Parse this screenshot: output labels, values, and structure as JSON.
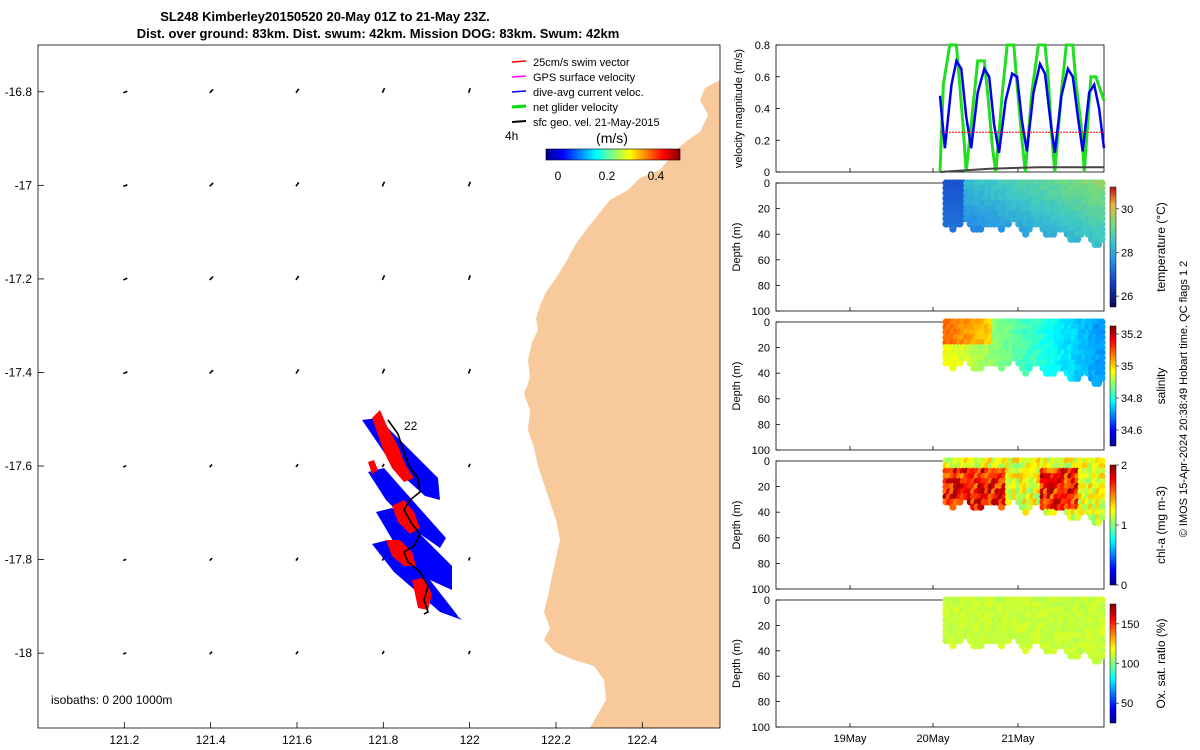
{
  "title": {
    "line1": "SL248 Kimberley20150520 20-May 01Z to 21-May 23Z.",
    "line2": "Dist. over ground: 83km. Dist. swum: 42km. Mission DOG: 83km. Swum: 42km"
  },
  "credit": "© IMOS 15-Apr-2024 20:38:49 Hobart time. QC flags 1  2",
  "map": {
    "xlim": [
      121.0,
      122.58
    ],
    "ylim": [
      -18.16,
      -16.7
    ],
    "xticks": [
      {
        "v": 121.2,
        "label": "121.2"
      },
      {
        "v": 121.4,
        "label": "121.4"
      },
      {
        "v": 121.6,
        "label": "121.6"
      },
      {
        "v": 121.8,
        "label": "121.8"
      },
      {
        "v": 122.0,
        "label": "122"
      },
      {
        "v": 122.2,
        "label": "122.2"
      },
      {
        "v": 122.4,
        "label": "122.4"
      }
    ],
    "yticks": [
      {
        "v": -16.8,
        "label": "-16.8"
      },
      {
        "v": -17.0,
        "label": "-17"
      },
      {
        "v": -17.2,
        "label": "-17.2"
      },
      {
        "v": -17.4,
        "label": "-17.4"
      },
      {
        "v": -17.6,
        "label": "-17.6"
      },
      {
        "v": -17.8,
        "label": "-17.8"
      },
      {
        "v": -18.0,
        "label": "-18"
      }
    ],
    "isobaths_label": "isobaths: 0   200  1000m",
    "legend": [
      {
        "label": "25cm/s swim vector",
        "color": "#ff0000"
      },
      {
        "label": "GPS surface velocity",
        "color": "#ff00ff"
      },
      {
        "label": "dive-avg current veloc.",
        "color": "#0000ff"
      },
      {
        "label": "net glider velocity",
        "color": "#00dd00"
      },
      {
        "label": "sfc geo. vel. 21-May-2015",
        "color": "#000000"
      }
    ],
    "time_marker": "4h",
    "track_label": "22",
    "colorbar": {
      "title": "(m/s)",
      "ticks": [
        "0",
        "0.2",
        "0.4"
      ]
    },
    "land_color": "#f8c99a"
  },
  "chart_data": [
    {
      "type": "line",
      "ylabel": "velocity magnitude (m/s)",
      "ylim": [
        0,
        0.8
      ],
      "yticks": [
        "0",
        "0.2",
        "0.4",
        "0.6",
        "0.8"
      ],
      "series": [
        {
          "name": "net glider velocity",
          "color": "#22dd22",
          "x": [
            0.0,
            0.02,
            0.06,
            0.1,
            0.12,
            0.14,
            0.16,
            0.2,
            0.23,
            0.27,
            0.29,
            0.32,
            0.34,
            0.38,
            0.41,
            0.45,
            0.47,
            0.5,
            0.52,
            0.56,
            0.6,
            0.64,
            0.66,
            0.68,
            0.7,
            0.74,
            0.77,
            0.81,
            0.83,
            0.86,
            0.88,
            0.92,
            0.95,
            1.0
          ],
          "values": [
            0.0,
            0.55,
            0.8,
            0.8,
            0.55,
            0.3,
            0.0,
            0.4,
            0.7,
            0.7,
            0.5,
            0.15,
            0.0,
            0.5,
            0.8,
            0.8,
            0.55,
            0.2,
            0.0,
            0.5,
            0.8,
            0.8,
            0.6,
            0.25,
            0.0,
            0.5,
            0.8,
            0.8,
            0.55,
            0.3,
            0.0,
            0.6,
            0.6,
            0.45
          ]
        },
        {
          "name": "dive-avg current",
          "color": "#0000ee",
          "x": [
            0.0,
            0.03,
            0.07,
            0.1,
            0.13,
            0.16,
            0.19,
            0.23,
            0.27,
            0.3,
            0.33,
            0.36,
            0.4,
            0.44,
            0.47,
            0.5,
            0.53,
            0.57,
            0.61,
            0.64,
            0.67,
            0.7,
            0.74,
            0.78,
            0.81,
            0.84,
            0.87,
            0.91,
            0.94,
            0.97,
            1.0
          ],
          "values": [
            0.48,
            0.15,
            0.55,
            0.7,
            0.65,
            0.35,
            0.15,
            0.5,
            0.65,
            0.6,
            0.3,
            0.12,
            0.45,
            0.62,
            0.6,
            0.32,
            0.13,
            0.5,
            0.68,
            0.62,
            0.35,
            0.12,
            0.48,
            0.65,
            0.6,
            0.35,
            0.13,
            0.5,
            0.55,
            0.4,
            0.15
          ]
        },
        {
          "name": "25cm/s swim",
          "color": "#ff0000",
          "x": [
            0.0,
            1.0
          ],
          "values": [
            0.25,
            0.25
          ]
        },
        {
          "name": "surface geo",
          "color": "#444444",
          "x": [
            0.0,
            0.3,
            0.6,
            1.0
          ],
          "values": [
            0.0,
            0.02,
            0.03,
            0.03
          ]
        }
      ]
    },
    {
      "type": "heatmap",
      "ylabel": "Depth (m)",
      "variable": "temperature (°C)",
      "clim": [
        25.5,
        31
      ],
      "cticks": [
        "26",
        "28",
        "30"
      ],
      "yticks": [
        "0",
        "20",
        "40",
        "60",
        "80",
        "100"
      ],
      "ylim": [
        0,
        100
      ]
    },
    {
      "type": "heatmap",
      "ylabel": "Depth (m)",
      "variable": "salinity",
      "clim": [
        34.5,
        35.25
      ],
      "cticks": [
        "34.6",
        "34.8",
        "35",
        "35.2"
      ],
      "yticks": [
        "0",
        "20",
        "40",
        "60",
        "80",
        "100"
      ],
      "ylim": [
        0,
        100
      ]
    },
    {
      "type": "heatmap",
      "ylabel": "Depth (m)",
      "variable": "chl-a (mg m-3)",
      "clim": [
        0,
        2
      ],
      "cticks": [
        "0",
        "1",
        "2"
      ],
      "yticks": [
        "0",
        "20",
        "40",
        "60",
        "80",
        "100"
      ],
      "ylim": [
        0,
        100
      ]
    },
    {
      "type": "heatmap",
      "ylabel": "Depth (m)",
      "variable": "Ox. sat. ratio (%)",
      "clim": [
        25,
        175
      ],
      "cticks": [
        "50",
        "100",
        "150"
      ],
      "yticks": [
        "0",
        "20",
        "40",
        "60",
        "80",
        "100"
      ],
      "ylim": [
        0,
        100
      ]
    }
  ],
  "time_axis": {
    "ticks": [
      "19May",
      "20May",
      "21May"
    ]
  }
}
